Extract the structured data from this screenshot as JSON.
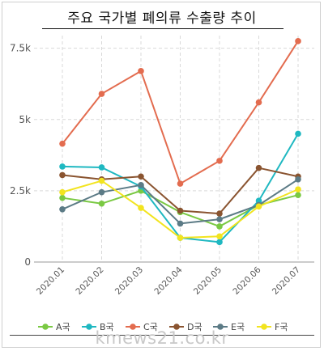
{
  "title": "주요  국가별  폐의류  수출량  추이",
  "watermark": "kmews21.co.kr",
  "chart_data": {
    "type": "line",
    "categories": [
      "2020.01",
      "2020.02",
      "2020.03",
      "2020.04",
      "2020.05",
      "2020.06",
      "2020.07"
    ],
    "y_tick_labels": [
      "0",
      "2.5k",
      "5k",
      "7.5k"
    ],
    "y_ticks": [
      0,
      2500,
      5000,
      7500
    ],
    "ylim": [
      0,
      8000
    ],
    "grid": true,
    "legend_position": "bottom",
    "series": [
      {
        "name": "A국",
        "color": "#7ac943",
        "values": [
          2250,
          2050,
          2500,
          1750,
          1250,
          2000,
          2350
        ]
      },
      {
        "name": "B국",
        "color": "#1fb8c1",
        "values": [
          3350,
          3320,
          2650,
          850,
          700,
          2150,
          4500
        ]
      },
      {
        "name": "C국",
        "color": "#e36c4f",
        "values": [
          4150,
          5900,
          6700,
          2750,
          3550,
          5600,
          7750
        ]
      },
      {
        "name": "D국",
        "color": "#8a5430",
        "values": [
          3050,
          2900,
          3000,
          1800,
          1700,
          3300,
          3000
        ]
      },
      {
        "name": "E국",
        "color": "#5c7b86",
        "values": [
          1850,
          2450,
          2700,
          1350,
          1500,
          2000,
          2900
        ]
      },
      {
        "name": "F국",
        "color": "#f2e41f",
        "values": [
          2450,
          2850,
          1900,
          850,
          900,
          1950,
          2550
        ]
      }
    ]
  }
}
